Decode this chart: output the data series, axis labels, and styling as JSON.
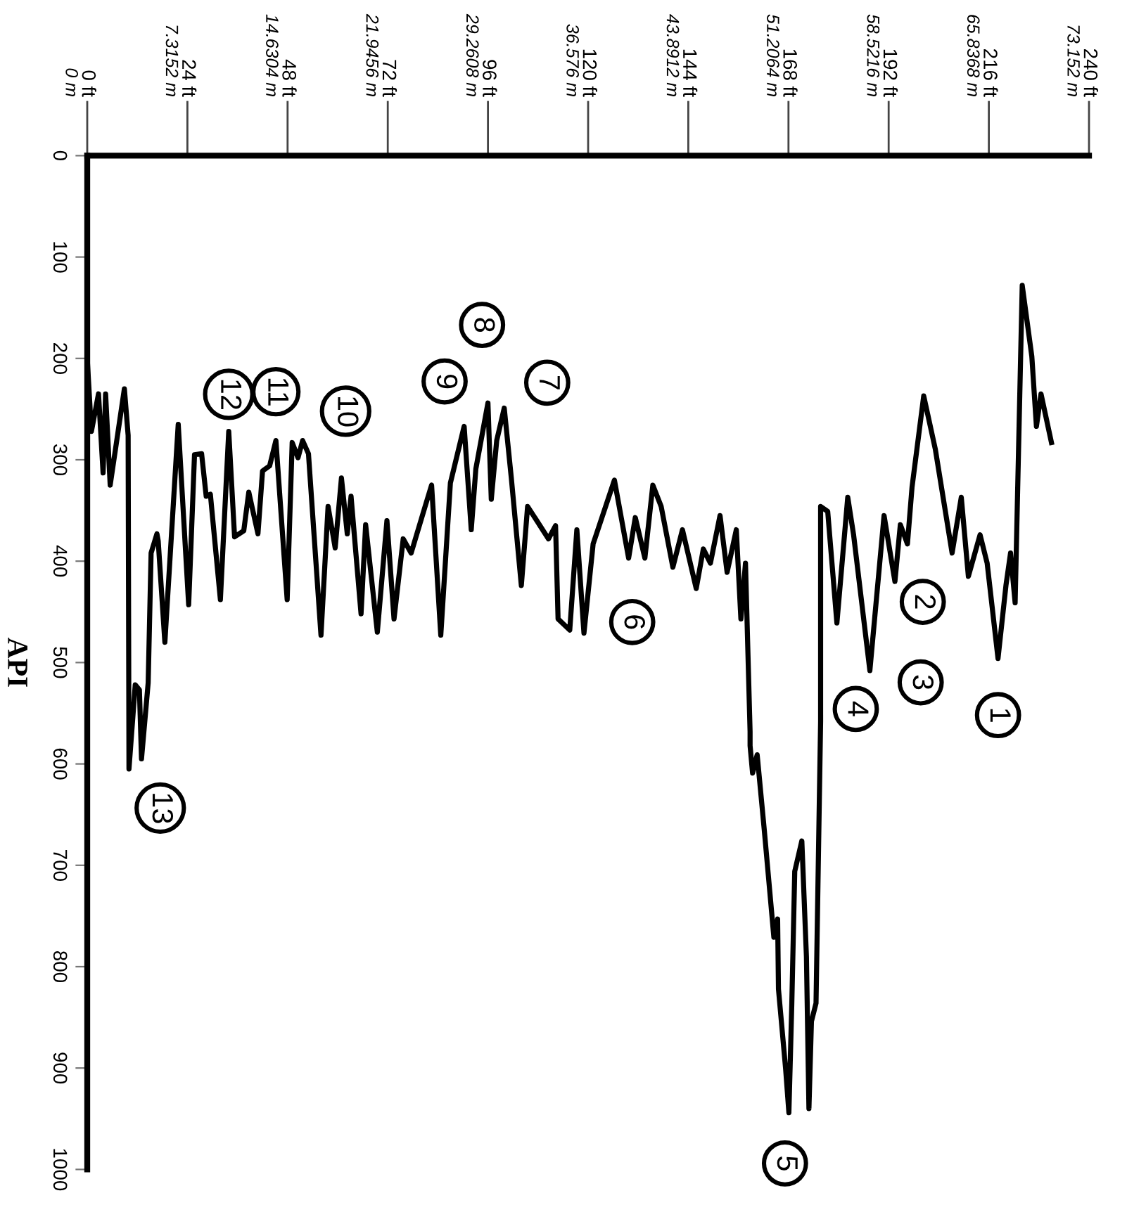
{
  "chart_data": {
    "type": "line",
    "ylabel": "API",
    "x": [
      0,
      1,
      2.7,
      3.8,
      4.4,
      5.5,
      8.9,
      9.8,
      10,
      11.5,
      12.5,
      13,
      14.6,
      15.3,
      16.7,
      17,
      18.6,
      21.8,
      24.3,
      25.7,
      27.4,
      28.5,
      29.5,
      31.9,
      33.9,
      35.3,
      37.5,
      38.7,
      40.9,
      42,
      43.7,
      45.2,
      47.9,
      49.1,
      50.5,
      51.6,
      53,
      56,
      57.7,
      59.4,
      60.9,
      62.3,
      63.2,
      65.6,
      66.7,
      69.5,
      71.8,
      73.5,
      75.7,
      77.6,
      80.8,
      82.5,
      84.7,
      87,
      90.3,
      92,
      93.1,
      96,
      96.8,
      98.1,
      99.9,
      101.6,
      104,
      105.5,
      110.5,
      112.2,
      112.8,
      115.6,
      117.3,
      119,
      121.2,
      126.3,
      129.7,
      131.3,
      133.6,
      135.5,
      137.5,
      140.3,
      142.6,
      145.9,
      147.6,
      149.3,
      151.6,
      153.3,
      155.5,
      156.6,
      157.7,
      158.8,
      158.8,
      159.4,
      160.5,
      162.2,
      164.5,
      165.4,
      165.6,
      167.3,
      168.1,
      168.8,
      169.5,
      171.2,
      172.3,
      172.9,
      173.5,
      174.6,
      175.7,
      175.7,
      177.4,
      179.6,
      182.2,
      183.6,
      187.5,
      190.9,
      193.5,
      194.8,
      196.5,
      197.6,
      200.4,
      203.2,
      207.2,
      209.4,
      211.1,
      213.9,
      215.6,
      218.2,
      220.1,
      221.2,
      222.3,
      224,
      226.3,
      227.4,
      228.5,
      231
    ],
    "series": [
      {
        "color": "#000000",
        "values": [
          200,
          272,
          235,
          313,
          235,
          325,
          230,
          276,
          605,
          522,
          527,
          595,
          520,
          392,
          373,
          380,
          480,
          265,
          443,
          295,
          294,
          336,
          334,
          438,
          272,
          376,
          370,
          332,
          373,
          311,
          306,
          281,
          438,
          283,
          298,
          281,
          294,
          473,
          346,
          387,
          318,
          373,
          336,
          452,
          364,
          470,
          360,
          457,
          378,
          392,
          348,
          325,
          473,
          323,
          267,
          369,
          309,
          244,
          339,
          281,
          249,
          318,
          424,
          346,
          378,
          365,
          457,
          468,
          369,
          471,
          383,
          320,
          397,
          357,
          397,
          325,
          346,
          406,
          369,
          427,
          388,
          402,
          355,
          411,
          369,
          457,
          402,
          568,
          582,
          609,
          591,
          665,
          771,
          753,
          822,
          900,
          944,
          836,
          706,
          676,
          790,
          940,
          854,
          836,
          558,
          346,
          351,
          461,
          337,
          374,
          508,
          355,
          420,
          364,
          383,
          327,
          237,
          290,
          392,
          337,
          415,
          374,
          402,
          496,
          424,
          392,
          441,
          128,
          198,
          267,
          235,
          283
        ]
      }
    ],
    "xlim": [
      0,
      240
    ],
    "xticks": [
      {
        "value": 0,
        "label": "0 ft"
      },
      {
        "value": 24,
        "label": "24 ft"
      },
      {
        "value": 48,
        "label": "48 ft"
      },
      {
        "value": 72,
        "label": "72 ft"
      },
      {
        "value": 96,
        "label": "96 ft"
      },
      {
        "value": 120,
        "label": "120 ft"
      },
      {
        "value": 144,
        "label": "144 ft"
      },
      {
        "value": 168,
        "label": "168 ft"
      },
      {
        "value": 192,
        "label": "192 ft"
      },
      {
        "value": 216,
        "label": "216 ft"
      },
      {
        "value": 240,
        "label": "240 ft"
      }
    ],
    "x2lim": [
      0,
      73.152
    ],
    "x2ticks": [
      {
        "value": 0,
        "label": "0 m"
      },
      {
        "value": 7.3152,
        "label": "7.3152 m"
      },
      {
        "value": 14.6304,
        "label": "14.6304 m"
      },
      {
        "value": 21.9456,
        "label": "21.9456 m"
      },
      {
        "value": 29.2608,
        "label": "29.2608 m"
      },
      {
        "value": 36.576,
        "label": "36.576 m"
      },
      {
        "value": 43.8912,
        "label": "43.8912 m"
      },
      {
        "value": 51.2064,
        "label": "51.2064 m"
      },
      {
        "value": 58.5216,
        "label": "58.5216 m"
      },
      {
        "value": 65.8368,
        "label": "65.8368 m"
      },
      {
        "value": 73.152,
        "label": "73.152 m"
      }
    ],
    "ylim": [
      1000,
      0
    ],
    "yticks": [
      0,
      100,
      200,
      300,
      400,
      500,
      600,
      700,
      800,
      900,
      1000
    ],
    "grid": false,
    "line_style": "solid",
    "annotations": [
      {
        "text": "1",
        "x": 218.2,
        "y": 496
      },
      {
        "text": "2",
        "x": 207.2,
        "y": 392
      },
      {
        "text": "3",
        "x": 187.5,
        "y": 508
      },
      {
        "text": "4",
        "x": 175.7,
        "y": 540
      },
      {
        "text": "5",
        "x": 168.1,
        "y": 944
      },
      {
        "text": "6",
        "x": 121.2,
        "y": 383
      },
      {
        "text": "7",
        "x": 99.9,
        "y": 249
      },
      {
        "text": "8",
        "x": 96,
        "y": 244
      },
      {
        "text": "9",
        "x": 90.3,
        "y": 267
      },
      {
        "text": "10",
        "x": 51.6,
        "y": 281
      },
      {
        "text": "11",
        "x": 45.2,
        "y": 281
      },
      {
        "text": "12",
        "x": 33.9,
        "y": 272
      },
      {
        "text": "13",
        "x": 10,
        "y": 605
      }
    ]
  }
}
